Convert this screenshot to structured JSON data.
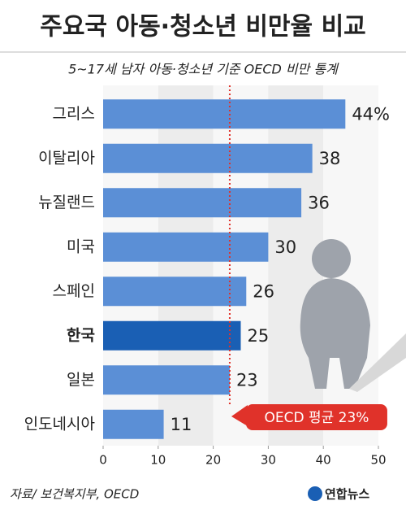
{
  "chart_data": {
    "type": "bar",
    "orientation": "horizontal",
    "title": "주요국 아동·청소년 비만율 비교",
    "subtitle": "5~17세 남자 아동·청소년 기준 OECD 비만 통계",
    "categories": [
      "그리스",
      "이탈리아",
      "뉴질랜드",
      "미국",
      "스페인",
      "한국",
      "일본",
      "인도네시아"
    ],
    "values": [
      44,
      38,
      36,
      30,
      26,
      25,
      23,
      11
    ],
    "value_labels": [
      "44%",
      "38",
      "36",
      "30",
      "26",
      "25",
      "23",
      "11"
    ],
    "color": "#5b8fd6",
    "highlight": {
      "category": "한국",
      "color": "#1a5fb4"
    },
    "xlim": [
      0,
      50
    ],
    "xticks": [
      0,
      10,
      20,
      30,
      40,
      50
    ],
    "reference": {
      "value": 23,
      "label": "OECD 평균 23%",
      "color": "#e0322a"
    },
    "source": "자료/ 보건복지부, OECD",
    "credit": "연합뉴스"
  }
}
